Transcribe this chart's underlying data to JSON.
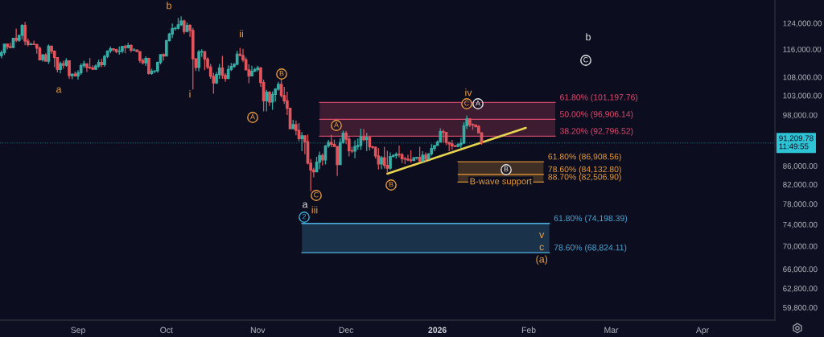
{
  "chart_data": {
    "type": "candlestick",
    "log": "y",
    "grid": false,
    "xlim": [
      "2025-08-05T12:00",
      "2026-04-25T14:00"
    ],
    "xticks": [
      {
        "value": "2025-09-01",
        "label": "Sep"
      },
      {
        "value": "2025-10-01",
        "label": "Oct"
      },
      {
        "value": "2025-11-01",
        "label": "Nov"
      },
      {
        "value": "2025-12-01",
        "label": "Dec"
      },
      {
        "value": "2026-01-01",
        "label": "2026"
      },
      {
        "value": "2026-02-01",
        "label": "Feb"
      },
      {
        "value": "2026-03-01",
        "label": "Mar"
      },
      {
        "value": "2026-04-01",
        "label": "Apr"
      }
    ],
    "ylim": [
      57900,
      131600
    ],
    "yticks": [
      {
        "value": 124000,
        "label": "124,000.00"
      },
      {
        "value": 116000,
        "label": "116,000.00"
      },
      {
        "value": 108000,
        "label": "108,000.00"
      },
      {
        "value": 103000,
        "label": "103,000.00"
      },
      {
        "value": 98000,
        "label": "98,000.00"
      },
      {
        "value": 86000,
        "label": "86,000.00"
      },
      {
        "value": 82000,
        "label": "82,000.00"
      },
      {
        "value": 78000,
        "label": "78,000.00"
      },
      {
        "value": 74000,
        "label": "74,000.00"
      },
      {
        "value": 70000,
        "label": "70,000.00"
      },
      {
        "value": 66000,
        "label": "66,000.00"
      },
      {
        "value": 62800,
        "label": "62,800.00"
      },
      {
        "value": 59800,
        "label": "59,800.00"
      }
    ],
    "x": [
      "2025-08-06",
      "2025-08-07",
      "2025-08-08",
      "2025-08-09",
      "2025-08-10",
      "2025-08-11",
      "2025-08-12",
      "2025-08-13",
      "2025-08-14",
      "2025-08-15",
      "2025-08-16",
      "2025-08-17",
      "2025-08-18",
      "2025-08-19",
      "2025-08-20",
      "2025-08-21",
      "2025-08-22",
      "2025-08-23",
      "2025-08-24",
      "2025-08-25",
      "2025-08-26",
      "2025-08-27",
      "2025-08-28",
      "2025-08-29",
      "2025-08-30",
      "2025-08-31",
      "2025-09-01",
      "2025-09-02",
      "2025-09-03",
      "2025-09-04",
      "2025-09-05",
      "2025-09-06",
      "2025-09-07",
      "2025-09-08",
      "2025-09-09",
      "2025-09-10",
      "2025-09-11",
      "2025-09-12",
      "2025-09-13",
      "2025-09-14",
      "2025-09-15",
      "2025-09-16",
      "2025-09-17",
      "2025-09-18",
      "2025-09-19",
      "2025-09-20",
      "2025-09-21",
      "2025-09-22",
      "2025-09-23",
      "2025-09-24",
      "2025-09-25",
      "2025-09-26",
      "2025-09-27",
      "2025-09-28",
      "2025-09-29",
      "2025-09-30",
      "2025-10-01",
      "2025-10-02",
      "2025-10-03",
      "2025-10-04",
      "2025-10-05",
      "2025-10-06",
      "2025-10-07",
      "2025-10-08",
      "2025-10-09",
      "2025-10-10",
      "2025-10-11",
      "2025-10-12",
      "2025-10-13",
      "2025-10-14",
      "2025-10-15",
      "2025-10-16",
      "2025-10-17",
      "2025-10-18",
      "2025-10-19",
      "2025-10-20",
      "2025-10-21",
      "2025-10-22",
      "2025-10-23",
      "2025-10-24",
      "2025-10-25",
      "2025-10-26",
      "2025-10-27",
      "2025-10-28",
      "2025-10-29",
      "2025-10-30",
      "2025-10-31",
      "2025-11-01",
      "2025-11-02",
      "2025-11-03",
      "2025-11-04",
      "2025-11-05",
      "2025-11-06",
      "2025-11-07",
      "2025-11-08",
      "2025-11-09",
      "2025-11-10",
      "2025-11-11",
      "2025-11-12",
      "2025-11-13",
      "2025-11-14",
      "2025-11-15",
      "2025-11-16",
      "2025-11-17",
      "2025-11-18",
      "2025-11-19",
      "2025-11-20",
      "2025-11-21",
      "2025-11-22",
      "2025-11-23",
      "2025-11-24",
      "2025-11-25",
      "2025-11-26",
      "2025-11-27",
      "2025-11-28",
      "2025-11-29",
      "2025-11-30",
      "2025-12-01",
      "2025-12-02",
      "2025-12-03",
      "2025-12-04",
      "2025-12-05",
      "2025-12-06",
      "2025-12-07",
      "2025-12-08",
      "2025-12-09",
      "2025-12-10",
      "2025-12-11",
      "2025-12-12",
      "2025-12-13",
      "2025-12-14",
      "2025-12-15",
      "2025-12-16",
      "2025-12-17",
      "2025-12-18",
      "2025-12-19",
      "2025-12-20",
      "2025-12-21",
      "2025-12-22",
      "2025-12-23",
      "2025-12-24",
      "2025-12-25",
      "2025-12-26",
      "2025-12-27",
      "2025-12-28",
      "2025-12-29",
      "2025-12-30",
      "2025-12-31",
      "2026-01-01",
      "2026-01-02",
      "2026-01-03",
      "2026-01-04",
      "2026-01-05",
      "2026-01-06",
      "2026-01-07",
      "2026-01-08",
      "2026-01-09",
      "2026-01-10",
      "2026-01-11",
      "2026-01-12",
      "2026-01-13",
      "2026-01-14",
      "2026-01-15",
      "2026-01-16"
    ],
    "ohlc": [
      [
        114100,
        115700,
        113300,
        115000
      ],
      [
        115000,
        117600,
        114300,
        117500
      ],
      [
        117500,
        117700,
        115900,
        116700
      ],
      [
        116700,
        117900,
        116300,
        116500
      ],
      [
        116500,
        119300,
        116500,
        119300
      ],
      [
        119300,
        122300,
        118100,
        118700
      ],
      [
        118700,
        120300,
        118200,
        120200
      ],
      [
        120200,
        123700,
        118900,
        123300
      ],
      [
        123300,
        124400,
        117200,
        118400
      ],
      [
        118400,
        119200,
        116800,
        117400
      ],
      [
        117400,
        117900,
        117200,
        117500
      ],
      [
        117500,
        118600,
        117300,
        117400
      ],
      [
        117400,
        117600,
        114700,
        116300
      ],
      [
        116300,
        116800,
        112700,
        112900
      ],
      [
        112900,
        114600,
        112400,
        114300
      ],
      [
        114300,
        114800,
        112400,
        112500
      ],
      [
        112500,
        117400,
        111700,
        116900
      ],
      [
        116900,
        117000,
        114600,
        115400
      ],
      [
        115400,
        115600,
        110800,
        113500
      ],
      [
        113500,
        113600,
        109300,
        110100
      ],
      [
        110100,
        112400,
        109000,
        111800
      ],
      [
        111800,
        112600,
        110400,
        111300
      ],
      [
        111300,
        113400,
        110900,
        112600
      ],
      [
        112600,
        112600,
        107500,
        108400
      ],
      [
        108400,
        108900,
        107400,
        108800
      ],
      [
        108800,
        109500,
        108100,
        108300
      ],
      [
        108300,
        109900,
        107300,
        109200
      ],
      [
        109200,
        111800,
        108600,
        111200
      ],
      [
        111200,
        112600,
        110600,
        111700
      ],
      [
        111700,
        111800,
        109400,
        110700
      ],
      [
        110700,
        113400,
        110200,
        110600
      ],
      [
        110600,
        111300,
        110000,
        110200
      ],
      [
        110200,
        111600,
        110000,
        111100
      ],
      [
        111100,
        112900,
        110600,
        112100
      ],
      [
        112100,
        113200,
        110800,
        111500
      ],
      [
        111500,
        114300,
        110900,
        113900
      ],
      [
        113900,
        115500,
        113400,
        115500
      ],
      [
        115500,
        116800,
        114800,
        116100
      ],
      [
        116100,
        116300,
        115300,
        115900
      ],
      [
        115900,
        116100,
        114800,
        115300
      ],
      [
        115300,
        116800,
        114400,
        115400
      ],
      [
        115400,
        117000,
        114800,
        116800
      ],
      [
        116800,
        117300,
        114800,
        116500
      ],
      [
        116500,
        117900,
        116200,
        117100
      ],
      [
        117100,
        117500,
        115100,
        115700
      ],
      [
        115700,
        116300,
        115400,
        115800
      ],
      [
        115800,
        115900,
        115200,
        115300
      ],
      [
        115300,
        115400,
        112000,
        112700
      ],
      [
        112700,
        113300,
        111500,
        112000
      ],
      [
        112000,
        113900,
        111100,
        113300
      ],
      [
        113300,
        113500,
        108700,
        109000
      ],
      [
        109000,
        110300,
        108600,
        109600
      ],
      [
        109600,
        109800,
        109100,
        109700
      ],
      [
        109700,
        112400,
        109200,
        112100
      ],
      [
        112100,
        114500,
        111600,
        114400
      ],
      [
        114400,
        114800,
        112600,
        114000
      ],
      [
        114000,
        118600,
        113900,
        118600
      ],
      [
        118600,
        121000,
        118300,
        120600
      ],
      [
        120600,
        123900,
        119400,
        122300
      ],
      [
        122300,
        122900,
        121700,
        122400
      ],
      [
        122400,
        125700,
        122000,
        123500
      ],
      [
        123500,
        126200,
        123100,
        124700
      ],
      [
        124700,
        125100,
        120600,
        121400
      ],
      [
        121400,
        124200,
        121100,
        123300
      ],
      [
        123300,
        123700,
        119700,
        121700
      ],
      [
        121700,
        122500,
        104600,
        113200
      ],
      [
        113200,
        113400,
        109700,
        110700
      ],
      [
        110700,
        115800,
        109600,
        115200
      ],
      [
        115200,
        116000,
        113700,
        115300
      ],
      [
        115300,
        115400,
        109900,
        113100
      ],
      [
        113100,
        113600,
        110200,
        110800
      ],
      [
        110800,
        111700,
        107500,
        108200
      ],
      [
        108200,
        109200,
        103500,
        106400
      ],
      [
        106400,
        109400,
        106100,
        108700
      ],
      [
        108700,
        111700,
        107500,
        110500
      ],
      [
        110500,
        114000,
        107500,
        108500
      ],
      [
        108500,
        109100,
        106700,
        107600
      ],
      [
        107600,
        111300,
        107500,
        110100
      ],
      [
        110100,
        112000,
        109700,
        111000
      ],
      [
        111000,
        111900,
        110600,
        111600
      ],
      [
        111600,
        115500,
        111300,
        114500
      ],
      [
        114500,
        116400,
        114000,
        114100
      ],
      [
        114100,
        116100,
        112200,
        112900
      ],
      [
        112900,
        113600,
        109900,
        110000
      ],
      [
        110000,
        111600,
        106300,
        108300
      ],
      [
        108300,
        111200,
        108300,
        109600
      ],
      [
        109600,
        110600,
        109400,
        110100
      ],
      [
        110100,
        111200,
        109600,
        110600
      ],
      [
        110600,
        110800,
        105300,
        106500
      ],
      [
        106500,
        107300,
        98900,
        101600
      ],
      [
        101600,
        104500,
        98900,
        103900
      ],
      [
        103900,
        104200,
        100300,
        101300
      ],
      [
        101300,
        104100,
        99300,
        103300
      ],
      [
        103300,
        105000,
        101400,
        104700
      ],
      [
        104700,
        106700,
        104300,
        106000
      ],
      [
        106000,
        107500,
        102500,
        103000
      ],
      [
        103000,
        105300,
        100800,
        101600
      ],
      [
        101600,
        104000,
        98000,
        99700
      ],
      [
        99700,
        99800,
        94600,
        94600
      ],
      [
        94600,
        96800,
        94500,
        95600
      ],
      [
        95600,
        96600,
        93000,
        94200
      ],
      [
        94200,
        96000,
        91600,
        92200
      ],
      [
        92200,
        93800,
        89300,
        92900
      ],
      [
        92900,
        92900,
        88600,
        91500
      ],
      [
        91500,
        93200,
        86300,
        86600
      ],
      [
        86600,
        87500,
        80600,
        85100
      ],
      [
        85100,
        85600,
        83500,
        84700
      ],
      [
        84700,
        88000,
        84700,
        86800
      ],
      [
        86800,
        89200,
        85300,
        88300
      ],
      [
        88300,
        88800,
        86100,
        87300
      ],
      [
        87300,
        90700,
        86300,
        90500
      ],
      [
        90500,
        91900,
        90100,
        91300
      ],
      [
        91300,
        93100,
        90200,
        90900
      ],
      [
        90900,
        92000,
        90400,
        90400
      ],
      [
        90400,
        90400,
        83800,
        86300
      ],
      [
        86300,
        92300,
        86200,
        91300
      ],
      [
        91300,
        94100,
        91000,
        93500
      ],
      [
        93500,
        94000,
        90900,
        92100
      ],
      [
        92100,
        92700,
        88100,
        89400
      ],
      [
        89400,
        90300,
        88900,
        89300
      ],
      [
        89300,
        91800,
        87700,
        90400
      ],
      [
        90400,
        92300,
        89600,
        90600
      ],
      [
        90600,
        94600,
        89600,
        92700
      ],
      [
        92700,
        94500,
        91600,
        92000
      ],
      [
        92000,
        93600,
        89300,
        92500
      ],
      [
        92500,
        92800,
        89500,
        90300
      ],
      [
        90300,
        90600,
        89800,
        90200
      ],
      [
        90200,
        90400,
        87600,
        88200
      ],
      [
        88200,
        90000,
        85200,
        86400
      ],
      [
        86400,
        88200,
        85300,
        87800
      ],
      [
        87800,
        90300,
        85400,
        86100
      ],
      [
        86100,
        89400,
        84400,
        85500
      ],
      [
        85500,
        89000,
        85100,
        88100
      ],
      [
        88100,
        88600,
        87900,
        88300
      ],
      [
        88300,
        89000,
        87600,
        88600
      ],
      [
        88600,
        90600,
        87900,
        88500
      ],
      [
        88500,
        88900,
        86600,
        87600
      ],
      [
        87600,
        88000,
        86400,
        87500
      ],
      [
        87500,
        88500,
        87000,
        87300
      ],
      [
        87300,
        89500,
        86700,
        87200
      ],
      [
        87200,
        87900,
        87200,
        87800
      ],
      [
        87800,
        88000,
        87400,
        87900
      ],
      [
        87900,
        90300,
        86800,
        87100
      ],
      [
        87100,
        89300,
        86800,
        88400
      ],
      [
        88400,
        89000,
        87000,
        87500
      ],
      [
        87500,
        88800,
        87400,
        88700
      ],
      [
        88700,
        90900,
        88300,
        89900
      ],
      [
        89900,
        90700,
        89300,
        90600
      ],
      [
        90600,
        91800,
        90500,
        91400
      ],
      [
        91400,
        94700,
        91300,
        93900
      ],
      [
        93900,
        94400,
        91300,
        93700
      ],
      [
        93700,
        93800,
        90700,
        91300
      ],
      [
        91300,
        91500,
        89300,
        91000
      ],
      [
        91000,
        91900,
        89600,
        90500
      ],
      [
        90500,
        90800,
        90200,
        90400
      ],
      [
        90400,
        91200,
        90200,
        90800
      ],
      [
        90800,
        92400,
        90000,
        91200
      ],
      [
        91200,
        96200,
        90900,
        95300
      ],
      [
        95300,
        97900,
        94500,
        97000
      ],
      [
        97000,
        97200,
        95000,
        95600
      ],
      [
        95600,
        95900,
        94300,
        95500
      ],
      [
        95500,
        95600,
        94900,
        95100
      ],
      [
        95100,
        95500,
        93500,
        93600
      ],
      [
        93600,
        93600,
        90800,
        91209.78
      ]
    ],
    "colors": [
      "#35ada4",
      "#35ada4",
      "#e0555c",
      "#e0555c",
      "#35ada4",
      "#e0555c",
      "#35ada4",
      "#35ada4",
      "#e0555c",
      "#e0555c",
      "#35ada4",
      "#e0555c",
      "#e0555c",
      "#e0555c",
      "#35ada4",
      "#e0555c",
      "#35ada4",
      "#e0555c",
      "#e0555c",
      "#e0555c",
      "#35ada4",
      "#e0555c",
      "#35ada4",
      "#e0555c",
      "#35ada4",
      "#e0555c",
      "#35ada4",
      "#35ada4",
      "#35ada4",
      "#e0555c",
      "#e0555c",
      "#e0555c",
      "#35ada4",
      "#35ada4",
      "#e0555c",
      "#35ada4",
      "#35ada4",
      "#35ada4",
      "#e0555c",
      "#e0555c",
      "#35ada4",
      "#35ada4",
      "#e0555c",
      "#35ada4",
      "#e0555c",
      "#35ada4",
      "#e0555c",
      "#e0555c",
      "#e0555c",
      "#35ada4",
      "#e0555c",
      "#35ada4",
      "#35ada4",
      "#35ada4",
      "#35ada4",
      "#e0555c",
      "#35ada4",
      "#35ada4",
      "#35ada4",
      "#35ada4",
      "#35ada4",
      "#35ada4",
      "#e0555c",
      "#35ada4",
      "#e0555c",
      "#e0555c",
      "#e0555c",
      "#35ada4",
      "#35ada4",
      "#e0555c",
      "#e0555c",
      "#e0555c",
      "#e0555c",
      "#35ada4",
      "#35ada4",
      "#e0555c",
      "#e0555c",
      "#35ada4",
      "#35ada4",
      "#35ada4",
      "#35ada4",
      "#e0555c",
      "#e0555c",
      "#e0555c",
      "#e0555c",
      "#35ada4",
      "#35ada4",
      "#35ada4",
      "#e0555c",
      "#e0555c",
      "#35ada4",
      "#e0555c",
      "#35ada4",
      "#35ada4",
      "#35ada4",
      "#e0555c",
      "#e0555c",
      "#e0555c",
      "#e0555c",
      "#35ada4",
      "#e0555c",
      "#e0555c",
      "#35ada4",
      "#e0555c",
      "#e0555c",
      "#e0555c",
      "#e0555c",
      "#35ada4",
      "#35ada4",
      "#e0555c",
      "#35ada4",
      "#35ada4",
      "#e0555c",
      "#e0555c",
      "#e0555c",
      "#35ada4",
      "#35ada4",
      "#e0555c",
      "#e0555c",
      "#e0555c",
      "#35ada4",
      "#35ada4",
      "#35ada4",
      "#e0555c",
      "#35ada4",
      "#e0555c",
      "#e0555c",
      "#e0555c",
      "#e0555c",
      "#35ada4",
      "#e0555c",
      "#e0555c",
      "#35ada4",
      "#35ada4",
      "#35ada4",
      "#e0555c",
      "#e0555c",
      "#e0555c",
      "#e0555c",
      "#e0555c",
      "#35ada4",
      "#35ada4",
      "#e0555c",
      "#35ada4",
      "#e0555c",
      "#35ada4",
      "#35ada4",
      "#35ada4",
      "#35ada4",
      "#35ada4",
      "#e0555c",
      "#e0555c",
      "#e0555c",
      "#e0555c",
      "#e0555c",
      "#35ada4",
      "#35ada4",
      "#35ada4",
      "#35ada4",
      "#e0555c",
      "#e0555c",
      "#e0555c",
      "#e0555c",
      "#e0555c"
    ],
    "series": [
      {
        "type": "line",
        "x": [
          "2025-11-22",
          "2026-02-10"
        ],
        "values": [
          96906.14,
          96906.14
        ],
        "lower": [
          92796.52,
          92796.52
        ],
        "upper": [
          101197.76,
          101197.76
        ],
        "color": "#d94a6c"
      },
      {
        "type": "line",
        "name": "B-wave support",
        "x": [
          "2026-01-08",
          "2026-02-06"
        ],
        "values": [
          84132.8,
          84132.8
        ],
        "lower": [
          82506.9,
          82506.9
        ],
        "upper": [
          86908.56,
          86908.56
        ],
        "color": "#e89a35"
      },
      {
        "type": "line",
        "x": [
          "2025-11-16",
          "2026-02-08"
        ],
        "values": [
          74198.39,
          74198.39
        ],
        "lower": [
          68824.11,
          68824.11
        ],
        "upper": [
          74198.39,
          74198.39
        ],
        "color": "#4aa6d4"
      },
      {
        "type": "line",
        "x": [
          "2025-12-15",
          "2026-01-31"
        ],
        "values": [
          84300,
          94800
        ],
        "color": "#e9d44f"
      }
    ],
    "ref_lines": [
      {
        "axis": "y",
        "value": 91209.78,
        "label": "91,209.78\n11:49:55",
        "color": "#2ec4d6",
        "line_style": "dotted"
      }
    ],
    "annotations": [
      "a",
      "b",
      "i",
      "ii",
      "A",
      "B",
      "C",
      "a",
      "2",
      "iii",
      "A",
      "B",
      "iv",
      "C",
      "A",
      "B",
      "b",
      "C",
      {
        "text": "v",
        "x": "2026-02-05T10:00",
        "y": 68824.11
      },
      {
        "text": "c",
        "x": "2026-02-05T10:00",
        "y": 68824.11
      },
      {
        "text": "(a)",
        "x": "2026-02-05T10:00",
        "y": 68824.11
      },
      {
        "text": "61.80% (101,197.76)",
        "x": "2026-02-10",
        "y": 101197.76
      },
      {
        "text": "50.00% (96,906.14)",
        "x": "2026-02-10",
        "y": 96906.14
      },
      {
        "text": "38.20% (92,796.52)",
        "x": "2026-02-10",
        "y": 92796.52
      },
      {
        "text": "61.80% (86,908.56)",
        "x": "2026-02-06",
        "y": 86908.56
      },
      {
        "text": "78.60% (84,132.80)",
        "x": "2026-02-06",
        "y": 84132.8
      },
      {
        "text": "88.70% (82,506.90)",
        "x": "2026-02-06",
        "y": 82506.9
      },
      {
        "text": "61.80% (74,198.39)",
        "x": "2026-02-08",
        "y": 74198.39
      },
      {
        "text": "78.60% (68,824.11)",
        "x": "2026-02-08",
        "y": 68824.11
      }
    ]
  }
}
